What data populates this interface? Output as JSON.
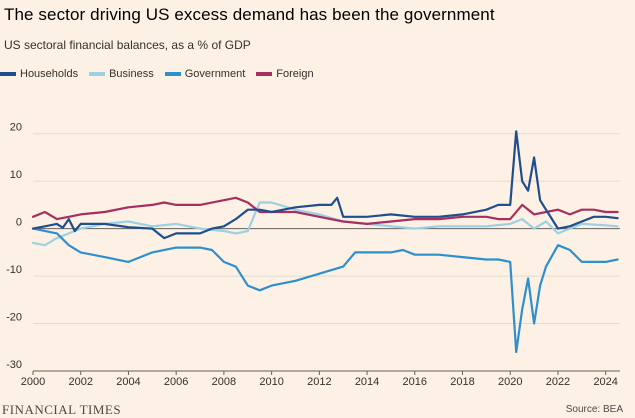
{
  "title": "The sector driving US excess demand has been the government",
  "subtitle": "US sectoral financial balances, as a % of GDP",
  "footer": {
    "brand": "FINANCIAL TIMES",
    "source": "Source: BEA"
  },
  "chart_data": {
    "type": "line",
    "ylim": [
      -30,
      25
    ],
    "xlim": [
      2000,
      2024.6
    ],
    "y_ticks": [
      20,
      10,
      0,
      -10,
      -20,
      -30
    ],
    "x_ticks": [
      "2000",
      "2002",
      "2004",
      "2006",
      "2008",
      "2010",
      "2012",
      "2014",
      "2016",
      "2018",
      "2020",
      "2022",
      "2024"
    ],
    "grid": true,
    "legend_position": "top-left",
    "series": [
      {
        "name": "Households",
        "color": "#1f4e8c",
        "x": [
          2000,
          2000.5,
          2001,
          2001.25,
          2001.5,
          2001.75,
          2002,
          2003,
          2004,
          2005,
          2005.5,
          2006,
          2007,
          2007.5,
          2008,
          2008.5,
          2009,
          2009.5,
          2010,
          2011,
          2012,
          2012.5,
          2012.75,
          2013,
          2014,
          2015,
          2016,
          2017,
          2018,
          2019,
          2019.5,
          2020,
          2020.25,
          2020.5,
          2020.75,
          2021,
          2021.25,
          2021.5,
          2022,
          2022.5,
          2023,
          2023.5,
          2024,
          2024.5
        ],
        "values": [
          0,
          0.5,
          1,
          0.2,
          2,
          -0.5,
          1,
          1,
          0.3,
          0,
          -2,
          -1,
          -1,
          0,
          0.5,
          2,
          4,
          4,
          3.5,
          4.5,
          5,
          5,
          6.5,
          2.5,
          2.5,
          3,
          2.5,
          2.5,
          3,
          4,
          5,
          5,
          20.5,
          10,
          8,
          15,
          6,
          4,
          0,
          0.5,
          1.5,
          2.5,
          2.5,
          2.2
        ]
      },
      {
        "name": "Business",
        "color": "#9cd0e3",
        "x": [
          2000,
          2000.5,
          2001,
          2001.5,
          2002,
          2003,
          2004,
          2005,
          2006,
          2007,
          2008,
          2008.5,
          2009,
          2009.5,
          2010,
          2011,
          2012,
          2013,
          2014,
          2015,
          2016,
          2017,
          2018,
          2019,
          2020,
          2020.5,
          2021,
          2021.5,
          2022,
          2022.5,
          2023,
          2024,
          2024.5
        ],
        "values": [
          -3,
          -3.5,
          -2,
          -1,
          0,
          1,
          1.5,
          0.5,
          1,
          0,
          -0.5,
          -1,
          -0.5,
          5.5,
          5.5,
          4,
          3,
          1.5,
          1,
          0.5,
          0,
          0.5,
          0.5,
          0.5,
          1,
          2,
          0,
          1.5,
          -1,
          0,
          1,
          0.7,
          0.5
        ]
      },
      {
        "name": "Government",
        "color": "#2e8fcd",
        "x": [
          2000,
          2001,
          2001.5,
          2002,
          2003,
          2004,
          2005,
          2006,
          2007,
          2007.5,
          2008,
          2008.5,
          2009,
          2009.5,
          2010,
          2011,
          2012,
          2013,
          2013.5,
          2014,
          2015,
          2015.5,
          2016,
          2017,
          2018,
          2019,
          2019.5,
          2020,
          2020.25,
          2020.5,
          2020.75,
          2021,
          2021.25,
          2021.5,
          2022,
          2022.5,
          2023,
          2023.5,
          2024,
          2024.5
        ],
        "values": [
          0,
          -1,
          -3.5,
          -5,
          -6,
          -7,
          -5,
          -4,
          -4,
          -4.5,
          -7,
          -8,
          -12,
          -13,
          -12,
          -11,
          -9.5,
          -8,
          -5,
          -5,
          -5,
          -4.5,
          -5.5,
          -5.5,
          -6,
          -6.5,
          -6.5,
          -7,
          -26,
          -17,
          -10.5,
          -20,
          -12,
          -8,
          -3.5,
          -4.5,
          -7,
          -7,
          -7,
          -6.5
        ]
      },
      {
        "name": "Foreign",
        "color": "#a5305f",
        "x": [
          2000,
          2000.5,
          2001,
          2001.5,
          2002,
          2003,
          2004,
          2005,
          2005.5,
          2006,
          2007,
          2008,
          2008.5,
          2009,
          2009.5,
          2010,
          2011,
          2012,
          2013,
          2014,
          2015,
          2016,
          2017,
          2018,
          2019,
          2019.5,
          2020,
          2020.5,
          2021,
          2021.5,
          2022,
          2022.5,
          2023,
          2023.5,
          2024,
          2024.5
        ],
        "values": [
          2.5,
          3.5,
          2,
          2.5,
          3,
          3.5,
          4.5,
          5,
          5.5,
          5,
          5,
          6,
          6.5,
          5.5,
          3.5,
          3.5,
          3.5,
          2.5,
          1.5,
          1,
          1.5,
          2,
          2,
          2.5,
          2.5,
          2,
          2,
          5,
          3,
          3.5,
          4,
          3,
          4,
          4,
          3.5,
          3.5
        ]
      }
    ]
  }
}
